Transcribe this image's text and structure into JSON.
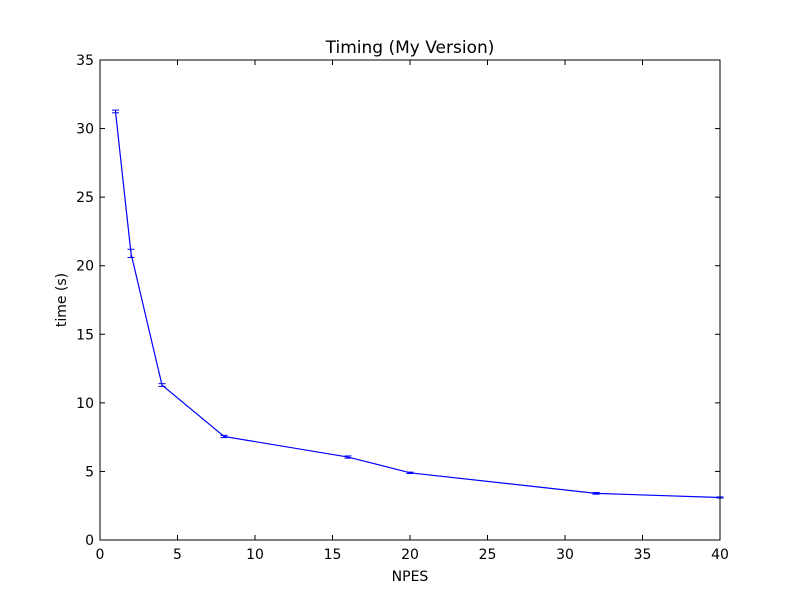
{
  "chart_data": {
    "type": "line",
    "title": "Timing (My Version)",
    "xlabel": "NPES",
    "ylabel": "time (s)",
    "xlim": [
      0,
      40
    ],
    "ylim": [
      0,
      35
    ],
    "xticks": [
      0,
      5,
      10,
      15,
      20,
      25,
      30,
      35,
      40
    ],
    "yticks": [
      0,
      5,
      10,
      15,
      20,
      25,
      30,
      35
    ],
    "grid": false,
    "legend": "none",
    "series": [
      {
        "color": "#0000ff",
        "x": [
          1,
          2,
          4,
          8,
          16,
          20,
          32,
          40
        ],
        "y": [
          31.25,
          20.9,
          11.3,
          7.55,
          6.05,
          4.9,
          3.4,
          3.1
        ],
        "yerr": [
          0.1,
          0.3,
          0.1,
          0.08,
          0.08,
          0.05,
          0.06,
          0.04
        ]
      }
    ]
  }
}
